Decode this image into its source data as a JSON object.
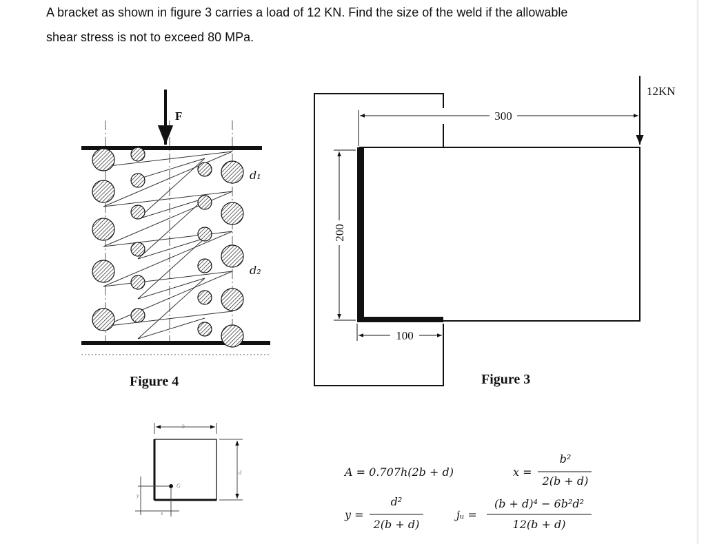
{
  "question": [
    "A bracket as shown in figure 3 carries a load of 12 KN. Find the size of the weld if the allowable",
    "shear stress is not to exceed 80 MPa."
  ],
  "figure4": {
    "force_label": "F",
    "d1_label": "d₁",
    "d2_label": "d₂",
    "caption": "Figure 4"
  },
  "figure3": {
    "length_label": "300",
    "load_label": "12KN",
    "height_label": "200",
    "width_label": "100",
    "caption": "Figure 3"
  },
  "weld_sketch": {
    "b_label": "b",
    "d_label": "d",
    "g_label": "G",
    "y_label": "y",
    "x_label": "x"
  },
  "formulas": {
    "area": "A = 0.707h(2b + d)",
    "x_lhs": "x =",
    "x_num": "b²",
    "x_den": "2(b + d)",
    "y_lhs": "y =",
    "y_num": "d²",
    "y_den": "2(b + d)",
    "ju_lhs": "jᵤ =",
    "ju_num": "(b + d)⁴ − 6b²d²",
    "ju_den": "12(b + d)"
  }
}
